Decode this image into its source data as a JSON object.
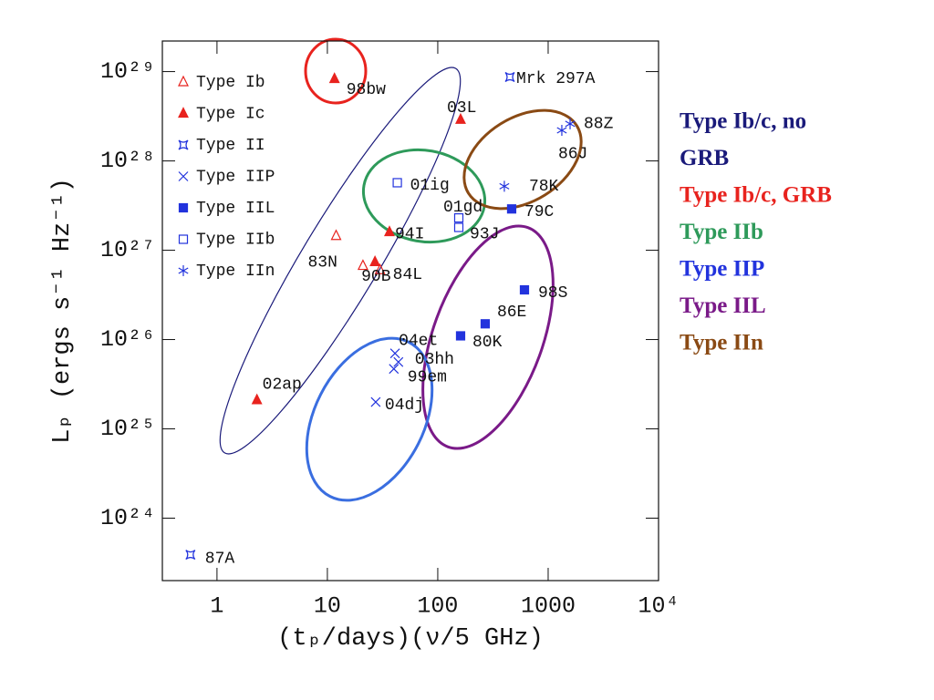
{
  "chart_data": {
    "type": "scatter",
    "xlabel": "(tₚ/days)(ν/5 GHz)",
    "ylabel": "Lₚ (ergs s⁻¹ Hz⁻¹)",
    "xscale": "log",
    "yscale": "log",
    "xlim": [
      0.32,
      10000
    ],
    "ylim": [
      2e+23,
      2.2e+29
    ],
    "xticks": [
      1,
      10,
      100,
      1000,
      {
        "value": 10000,
        "label": "10⁴"
      }
    ],
    "yticks": [
      {
        "value": 1e+24,
        "label": "10²⁴"
      },
      {
        "value": 1e+25,
        "label": "10²⁵"
      },
      {
        "value": 1e+26,
        "label": "10²⁶"
      },
      {
        "value": 1e+27,
        "label": "10²⁷"
      },
      {
        "value": 1e+28,
        "label": "10²⁸"
      },
      {
        "value": 1e+29,
        "label": "10²⁹"
      }
    ],
    "legend": "upper left",
    "series": [
      {
        "name": "Type Ib",
        "color": "#e8231e",
        "marker": "open-triangle",
        "x": [
          12,
          21,
          30
        ],
        "values": [
          1.45e+27,
          6.7e+26,
          6e+26
        ],
        "labels": [
          "83N",
          null,
          "84L"
        ]
      },
      {
        "name": "Type Ic",
        "color": "#e8231e",
        "marker": "filled-triangle",
        "x": [
          11.6,
          161,
          36.5,
          27,
          2.3
        ],
        "values": [
          8.3e+28,
          2.9e+28,
          1.6e+27,
          7.4e+26,
          2.1e+25
        ],
        "labels": [
          "98bw",
          "03L",
          "94I",
          "90B",
          "02ap"
        ]
      },
      {
        "name": "Type II",
        "color": "#2233dd",
        "marker": "star-square",
        "x": [
          450,
          0.575
        ],
        "values": [
          8.7e+28,
          3.9e+23
        ],
        "labels": [
          "Mrk 297A",
          "87A"
        ]
      },
      {
        "name": "Type IIP",
        "color": "#2233dd",
        "marker": "cross",
        "x": [
          41,
          44,
          40,
          27.4
        ],
        "values": [
          7e+25,
          5.6e+25,
          4.7e+25,
          2e+25
        ],
        "labels": [
          "04et",
          "03hh",
          "99em",
          "04dj"
        ]
      },
      {
        "name": "Type IIL",
        "color": "#2233dd",
        "marker": "filled-square",
        "x": [
          467,
          610,
          269,
          161
        ],
        "values": [
          2.9e+27,
          3.6e+26,
          1.5e+26,
          1.1e+26
        ],
        "labels": [
          "79C",
          "98S",
          "86E",
          "80K"
        ]
      },
      {
        "name": "Type IIb",
        "color": "#2233dd",
        "marker": "open-square",
        "x": [
          43,
          155,
          155
        ],
        "values": [
          5.7e+27,
          2.3e+27,
          1.8e+27
        ],
        "labels": [
          "01ig",
          "01gd",
          "93J"
        ]
      },
      {
        "name": "Type IIn",
        "color": "#2233dd",
        "marker": "asterisk",
        "x": [
          401,
          1580,
          1330
        ],
        "values": [
          5.2e+27,
          2.6e+28,
          2.2e+28
        ],
        "labels": [
          "78K",
          "88Z",
          "86J"
        ]
      }
    ],
    "side_legend": [
      {
        "lines": [
          "Type Ib/c, no",
          "GRB"
        ],
        "color": "#1a1a7a"
      },
      {
        "lines": [
          "Type Ib/c, GRB"
        ],
        "color": "#e8231e"
      },
      {
        "lines": [
          "Type IIb"
        ],
        "color": "#2e9a5a"
      },
      {
        "lines": [
          "Type IIP"
        ],
        "color": "#2233dd"
      },
      {
        "lines": [
          "Type IIL"
        ],
        "color": "#7a1a88"
      },
      {
        "lines": [
          "Type IIn"
        ],
        "color": "#8a4a14"
      }
    ]
  }
}
